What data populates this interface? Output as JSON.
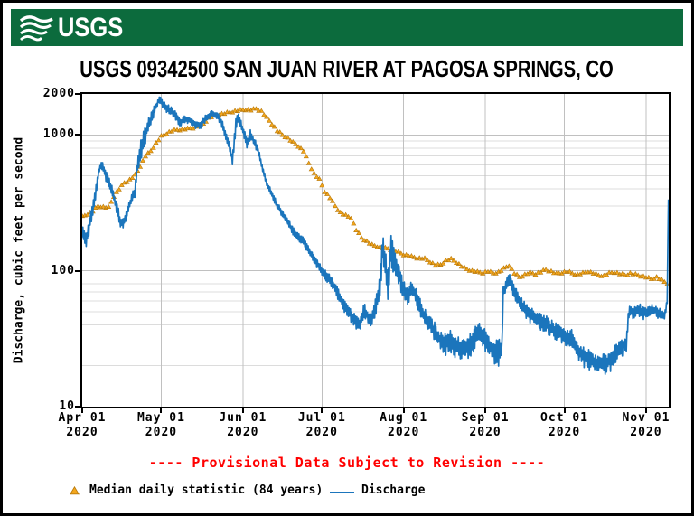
{
  "banner": {
    "logo_text": "USGS",
    "color": "#0c6b3d"
  },
  "title": "USGS 09342500 SAN JUAN RIVER AT PAGOSA SPRINGS, CO",
  "axes": {
    "ylabel": "Discharge, cubic feet per second",
    "y_ticks": [
      {
        "label": "2000",
        "value": 2000
      },
      {
        "label": "1000",
        "value": 1000
      },
      {
        "label": "100",
        "value": 100
      },
      {
        "label": "10",
        "value": 10
      }
    ],
    "x_ticks": [
      {
        "label": "Apr 01",
        "year": "2020",
        "day": 0
      },
      {
        "label": "May 01",
        "year": "2020",
        "day": 30
      },
      {
        "label": "Jun 01",
        "year": "2020",
        "day": 61
      },
      {
        "label": "Jul 01",
        "year": "2020",
        "day": 91
      },
      {
        "label": "Aug 01",
        "year": "2020",
        "day": 122
      },
      {
        "label": "Sep 01",
        "year": "2020",
        "day": 153
      },
      {
        "label": "Oct 01",
        "year": "2020",
        "day": 183
      },
      {
        "label": "Nov 01",
        "year": "2020",
        "day": 214
      }
    ]
  },
  "footer": {
    "provisional": "---- Provisional Data Subject to Revision ----",
    "legend": [
      {
        "label": "Median daily statistic (84 years)",
        "marker": "triangle",
        "color": "#f4a71d"
      },
      {
        "label": "Discharge",
        "marker": "line",
        "color": "#1b75bc"
      }
    ]
  },
  "colors": {
    "banner_green": "#0c6b3d",
    "discharge_blue": "#1b75bc",
    "median_orange": "#f4a71d",
    "median_orange_edge": "#b97a0c",
    "provisional_red": "#ff0000",
    "grid_minor": "#dcdcdc",
    "grid_major": "#c0c0c0"
  },
  "chart_data": {
    "type": "line",
    "title": "USGS 09342500 SAN JUAN RIVER AT PAGOSA SPRINGS, CO",
    "xlabel": "days since 2020-04-01",
    "ylabel": "Discharge, cubic feet per second",
    "y_scale": "log",
    "ylim": [
      10,
      2000
    ],
    "xlim_days": [
      0,
      222.6
    ],
    "grid": true,
    "legend_position": "bottom",
    "series": [
      {
        "name": "Median daily statistic (84 years)",
        "type": "scatter",
        "marker": "triangle",
        "color": "#f4a71d",
        "points": [
          [
            0,
            250
          ],
          [
            2,
            262
          ],
          [
            4,
            275
          ],
          [
            6,
            300
          ],
          [
            8,
            295
          ],
          [
            10,
            292
          ],
          [
            12,
            355
          ],
          [
            14,
            400
          ],
          [
            16,
            445
          ],
          [
            18,
            468
          ],
          [
            20,
            505
          ],
          [
            22,
            590
          ],
          [
            24,
            700
          ],
          [
            26,
            762
          ],
          [
            28,
            870
          ],
          [
            30,
            975
          ],
          [
            32,
            1030
          ],
          [
            34,
            1070
          ],
          [
            36,
            1090
          ],
          [
            38,
            1100
          ],
          [
            40,
            1110
          ],
          [
            42,
            1130
          ],
          [
            44,
            1160
          ],
          [
            46,
            1210
          ],
          [
            48,
            1330
          ],
          [
            50,
            1390
          ],
          [
            52,
            1420
          ],
          [
            54,
            1440
          ],
          [
            56,
            1470
          ],
          [
            58,
            1500
          ],
          [
            60,
            1520
          ],
          [
            62,
            1540
          ],
          [
            64,
            1525
          ],
          [
            66,
            1560
          ],
          [
            68,
            1495
          ],
          [
            70,
            1340
          ],
          [
            72,
            1210
          ],
          [
            74,
            1075
          ],
          [
            76,
            1000
          ],
          [
            78,
            950
          ],
          [
            80,
            880
          ],
          [
            82,
            830
          ],
          [
            84,
            760
          ],
          [
            86,
            620
          ],
          [
            88,
            520
          ],
          [
            90,
            470
          ],
          [
            92,
            385
          ],
          [
            94,
            345
          ],
          [
            96,
            300
          ],
          [
            98,
            268
          ],
          [
            100,
            255
          ],
          [
            102,
            246
          ],
          [
            104,
            200
          ],
          [
            106,
            175
          ],
          [
            108,
            165
          ],
          [
            110,
            155
          ],
          [
            112,
            152
          ],
          [
            114,
            148
          ],
          [
            116,
            146
          ],
          [
            118,
            142
          ],
          [
            120,
            137
          ],
          [
            122,
            132
          ],
          [
            124,
            129
          ],
          [
            126,
            126
          ],
          [
            128,
            124
          ],
          [
            130,
            123
          ],
          [
            132,
            117
          ],
          [
            134,
            110
          ],
          [
            136,
            111
          ],
          [
            138,
            119
          ],
          [
            140,
            122
          ],
          [
            142,
            116
          ],
          [
            144,
            108
          ],
          [
            146,
            103
          ],
          [
            148,
            100
          ],
          [
            150,
            98
          ],
          [
            152,
            97
          ],
          [
            154,
            99
          ],
          [
            156,
            96
          ],
          [
            158,
            98
          ],
          [
            160,
            104
          ],
          [
            162,
            110
          ],
          [
            164,
            96
          ],
          [
            166,
            90
          ],
          [
            168,
            94
          ],
          [
            170,
            97
          ],
          [
            172,
            95
          ],
          [
            174,
            98
          ],
          [
            176,
            102
          ],
          [
            178,
            99
          ],
          [
            180,
            95
          ],
          [
            182,
            97
          ],
          [
            184,
            99
          ],
          [
            186,
            96
          ],
          [
            188,
            94
          ],
          [
            190,
            96
          ],
          [
            192,
            99
          ],
          [
            194,
            96
          ],
          [
            196,
            93
          ],
          [
            198,
            92
          ],
          [
            200,
            96
          ],
          [
            202,
            98
          ],
          [
            204,
            95
          ],
          [
            206,
            93
          ],
          [
            208,
            96
          ],
          [
            210,
            94
          ],
          [
            212,
            92
          ],
          [
            214,
            90
          ],
          [
            216,
            87
          ],
          [
            218,
            90
          ],
          [
            220,
            85
          ],
          [
            222,
            81
          ]
        ]
      },
      {
        "name": "Discharge",
        "type": "line",
        "color": "#1b75bc",
        "point_format": "[day, cfs, diurnal_oscillation_fraction]",
        "points": [
          [
            0,
            185,
            0.16
          ],
          [
            1.5,
            170,
            0.15
          ],
          [
            3,
            230,
            0.13
          ],
          [
            5,
            370,
            0.12
          ],
          [
            6.5,
            570,
            0.09
          ],
          [
            7.5,
            605,
            0.08
          ],
          [
            9,
            500,
            0.09
          ],
          [
            11,
            405,
            0.1
          ],
          [
            13,
            300,
            0.12
          ],
          [
            14.5,
            225,
            0.12
          ],
          [
            16,
            235,
            0.12
          ],
          [
            18,
            310,
            0.1
          ],
          [
            20,
            385,
            0.12
          ],
          [
            21,
            600,
            0.22
          ],
          [
            23,
            900,
            0.18
          ],
          [
            25,
            1150,
            0.14
          ],
          [
            27,
            1450,
            0.1
          ],
          [
            29,
            1800,
            0.06
          ],
          [
            30,
            1760,
            0.07
          ],
          [
            31.5,
            1610,
            0.08
          ],
          [
            33,
            1540,
            0.08
          ],
          [
            35,
            1430,
            0.08
          ],
          [
            37,
            1230,
            0.07
          ],
          [
            39,
            1310,
            0.06
          ],
          [
            41,
            1270,
            0.06
          ],
          [
            43,
            1180,
            0.06
          ],
          [
            45,
            1190,
            0.06
          ],
          [
            47,
            1340,
            0.07
          ],
          [
            49,
            1430,
            0.06
          ],
          [
            51,
            1400,
            0.06
          ],
          [
            52.5,
            1290,
            0.07
          ],
          [
            54,
            1080,
            0.08
          ],
          [
            56,
            800,
            0.09
          ],
          [
            57,
            650,
            0.08
          ],
          [
            58.3,
            1200,
            0.16
          ],
          [
            59.3,
            1350,
            0.09
          ],
          [
            61,
            1090,
            0.08
          ],
          [
            62.5,
            870,
            0.09
          ],
          [
            63.8,
            1010,
            0.08
          ],
          [
            65.5,
            880,
            0.07
          ],
          [
            67,
            740,
            0.07
          ],
          [
            68.5,
            560,
            0.06
          ],
          [
            70,
            440,
            0.06
          ],
          [
            72,
            365,
            0.06
          ],
          [
            74,
            305,
            0.06
          ],
          [
            76,
            262,
            0.06
          ],
          [
            78,
            230,
            0.06
          ],
          [
            80,
            196,
            0.07
          ],
          [
            82,
            178,
            0.07
          ],
          [
            84,
            164,
            0.07
          ],
          [
            86,
            141,
            0.07
          ],
          [
            88,
            123,
            0.08
          ],
          [
            90,
            106,
            0.08
          ],
          [
            91.5,
            98,
            0.09
          ],
          [
            93,
            90,
            0.09
          ],
          [
            95,
            82,
            0.1
          ],
          [
            96.5,
            70,
            0.11
          ],
          [
            98,
            63,
            0.12
          ],
          [
            100,
            53,
            0.12
          ],
          [
            102,
            47,
            0.12
          ],
          [
            104,
            42,
            0.12
          ],
          [
            105.5,
            40,
            0.12
          ],
          [
            107,
            52,
            0.13
          ],
          [
            108.5,
            46,
            0.12
          ],
          [
            110,
            43,
            0.13
          ],
          [
            111.5,
            56,
            0.16
          ],
          [
            113,
            80,
            0.22
          ],
          [
            114,
            150,
            0.36
          ],
          [
            115,
            115,
            0.3
          ],
          [
            116,
            78,
            0.22
          ],
          [
            117,
            150,
            0.36
          ],
          [
            118,
            128,
            0.26
          ],
          [
            119,
            108,
            0.2
          ],
          [
            120.5,
            90,
            0.2
          ],
          [
            122,
            73,
            0.16
          ],
          [
            123.5,
            66,
            0.15
          ],
          [
            125,
            74,
            0.13
          ],
          [
            126.5,
            68,
            0.13
          ],
          [
            128,
            56,
            0.15
          ],
          [
            130,
            46,
            0.16
          ],
          [
            132,
            40,
            0.16
          ],
          [
            134,
            35,
            0.18
          ],
          [
            136,
            31,
            0.18
          ],
          [
            138,
            29,
            0.19
          ],
          [
            140,
            31,
            0.2
          ],
          [
            142,
            28,
            0.2
          ],
          [
            144,
            26,
            0.21
          ],
          [
            146,
            28,
            0.21
          ],
          [
            148,
            29,
            0.2
          ],
          [
            150,
            36,
            0.18
          ],
          [
            152,
            33,
            0.2
          ],
          [
            154,
            29,
            0.21
          ],
          [
            156,
            26.5,
            0.22
          ],
          [
            158,
            25.5,
            0.22
          ],
          [
            159.3,
            28,
            0.14
          ],
          [
            159.8,
            70,
            0.1
          ],
          [
            161,
            80,
            0.12
          ],
          [
            162.5,
            87,
            0.13
          ],
          [
            164,
            70,
            0.12
          ],
          [
            166,
            60,
            0.12
          ],
          [
            168,
            52,
            0.13
          ],
          [
            170,
            48,
            0.14
          ],
          [
            172,
            45,
            0.14
          ],
          [
            174,
            43,
            0.15
          ],
          [
            176,
            41,
            0.15
          ],
          [
            178,
            38,
            0.15
          ],
          [
            180,
            36,
            0.16
          ],
          [
            182,
            34,
            0.16
          ],
          [
            184,
            33,
            0.16
          ],
          [
            186,
            32,
            0.16
          ],
          [
            187.5,
            27,
            0.15
          ],
          [
            189,
            25,
            0.16
          ],
          [
            191,
            23,
            0.18
          ],
          [
            193,
            22,
            0.18
          ],
          [
            195,
            21,
            0.18
          ],
          [
            197,
            20.5,
            0.18
          ],
          [
            199,
            21,
            0.18
          ],
          [
            201,
            22.5,
            0.18
          ],
          [
            203,
            25,
            0.18
          ],
          [
            205,
            28,
            0.16
          ],
          [
            206.5,
            30,
            0.16
          ],
          [
            207.5,
            50,
            0.12
          ],
          [
            209,
            50,
            0.12
          ],
          [
            211,
            52,
            0.12
          ],
          [
            213,
            49,
            0.12
          ],
          [
            215,
            50,
            0.11
          ],
          [
            217,
            52,
            0.1
          ],
          [
            219,
            49,
            0.11
          ],
          [
            221,
            46,
            0.1
          ],
          [
            222,
            60,
            0.08
          ],
          [
            222.5,
            335,
            0
          ]
        ]
      }
    ]
  }
}
